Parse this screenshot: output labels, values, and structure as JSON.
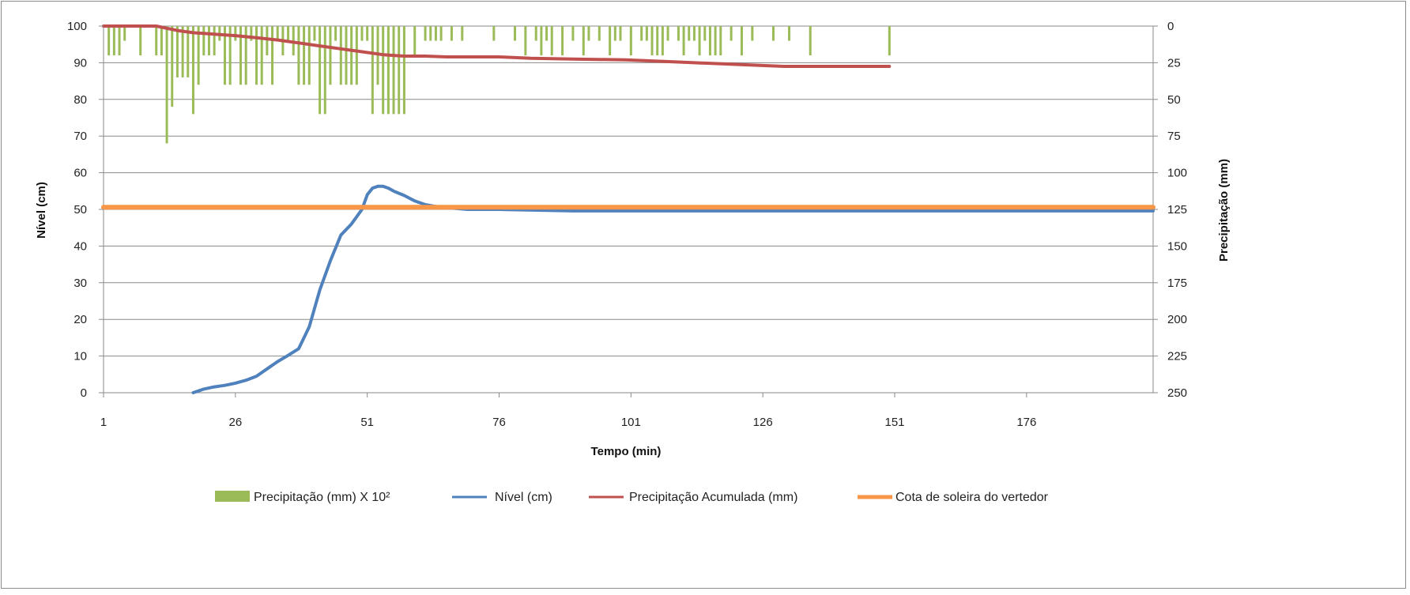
{
  "chart_data": {
    "type": "line",
    "title": "",
    "xlabel": "Tempo (min)",
    "ylabel_left": "Nível (cm)",
    "ylabel_right": "Precipitação (mm)",
    "x_ticks": [
      "1",
      "26",
      "51",
      "76",
      "101",
      "126",
      "151",
      "176"
    ],
    "y_left_ticks": [
      "0",
      "10",
      "20",
      "30",
      "40",
      "50",
      "60",
      "70",
      "80",
      "90",
      "100"
    ],
    "y_right_ticks": [
      "0",
      "25",
      "50",
      "75",
      "100",
      "125",
      "150",
      "175",
      "200",
      "225",
      "250"
    ],
    "xlim": [
      1,
      200
    ],
    "ylim_left": [
      0,
      100
    ],
    "ylim_right_inverted": [
      0,
      250
    ],
    "grid": true,
    "legend_position": "bottom",
    "legend": [
      {
        "label": "Precipitação (mm) X 10²",
        "kind": "bar",
        "color": "#9bbb59"
      },
      {
        "label": "Nível (cm)",
        "kind": "line",
        "color": "#4f81bd"
      },
      {
        "label": "Precipitação Acumulada (mm)",
        "kind": "line",
        "color": "#c0504d"
      },
      {
        "label": "Cota de soleira do vertedor",
        "kind": "line",
        "color": "#f79646"
      }
    ],
    "series": [
      {
        "name": "Precipitação (mm) X 10²",
        "axis": "right",
        "type": "bar",
        "color": "#9bbb59",
        "x": [
          2,
          3,
          4,
          5,
          8,
          11,
          12,
          13,
          14,
          15,
          16,
          17,
          18,
          19,
          20,
          21,
          22,
          23,
          24,
          25,
          26,
          27,
          28,
          29,
          30,
          31,
          32,
          33,
          34,
          35,
          36,
          37,
          38,
          39,
          40,
          41,
          42,
          43,
          44,
          45,
          46,
          47,
          48,
          49,
          50,
          51,
          52,
          53,
          54,
          55,
          56,
          57,
          58,
          60,
          62,
          63,
          64,
          65,
          67,
          69,
          75,
          79,
          81,
          83,
          84,
          85,
          86,
          88,
          90,
          92,
          93,
          95,
          97,
          98,
          99,
          101,
          103,
          104,
          105,
          106,
          107,
          108,
          110,
          111,
          112,
          113,
          114,
          115,
          116,
          117,
          118,
          120,
          122,
          124,
          128,
          131,
          135,
          150
        ],
        "values": [
          20,
          20,
          20,
          10,
          20,
          20,
          20,
          80,
          55,
          35,
          35,
          35,
          60,
          40,
          20,
          20,
          20,
          10,
          40,
          40,
          10,
          40,
          40,
          10,
          40,
          40,
          20,
          40,
          10,
          20,
          10,
          20,
          40,
          40,
          40,
          10,
          60,
          60,
          40,
          10,
          40,
          40,
          40,
          40,
          10,
          10,
          60,
          40,
          60,
          60,
          60,
          60,
          60,
          20,
          10,
          10,
          10,
          10,
          10,
          10,
          10,
          10,
          20,
          10,
          20,
          10,
          20,
          20,
          10,
          20,
          10,
          10,
          20,
          10,
          10,
          20,
          10,
          10,
          20,
          20,
          20,
          10,
          10,
          20,
          10,
          10,
          20,
          10,
          20,
          20,
          20,
          10,
          20,
          10,
          10,
          10,
          20,
          20
        ]
      },
      {
        "name": "Nível (cm)",
        "axis": "left",
        "type": "line",
        "color": "#4f81bd",
        "x": [
          18,
          20,
          22,
          24,
          26,
          28,
          30,
          32,
          34,
          36,
          38,
          40,
          42,
          44,
          46,
          48,
          50,
          51,
          52,
          53,
          54,
          55,
          56,
          58,
          60,
          62,
          64,
          66,
          70,
          76,
          90,
          110,
          130,
          150,
          176,
          200
        ],
        "values": [
          0,
          1,
          1.6,
          2,
          2.6,
          3.4,
          4.5,
          6.5,
          8.5,
          10.2,
          12,
          18,
          28,
          36,
          43,
          46,
          50,
          54,
          55.8,
          56.3,
          56.3,
          55.8,
          55,
          53.8,
          52.3,
          51.3,
          50.8,
          50.5,
          50,
          50,
          49.6,
          49.6,
          49.6,
          49.6,
          49.6,
          49.6
        ]
      },
      {
        "name": "Precipitação Acumulada (mm)",
        "axis": "right",
        "type": "line",
        "color": "#c0504d",
        "x": [
          1,
          11,
          15,
          18,
          22,
          26,
          30,
          34,
          38,
          42,
          46,
          50,
          54,
          58,
          62,
          66,
          70,
          76,
          82,
          90,
          100,
          110,
          120,
          130,
          140,
          150
        ],
        "values": [
          0,
          0,
          3,
          4.5,
          5.5,
          6.5,
          8,
          9.5,
          11.5,
          13.5,
          15.5,
          17.5,
          19.5,
          20.5,
          20.5,
          21,
          21,
          21,
          22,
          22.5,
          23,
          24.5,
          26,
          27.5,
          27.5,
          27.5
        ]
      },
      {
        "name": "Cota de soleira do vertedor",
        "axis": "left",
        "type": "line",
        "color": "#f79646",
        "x": [
          1,
          200
        ],
        "values": [
          50.6,
          50.6
        ]
      }
    ]
  }
}
